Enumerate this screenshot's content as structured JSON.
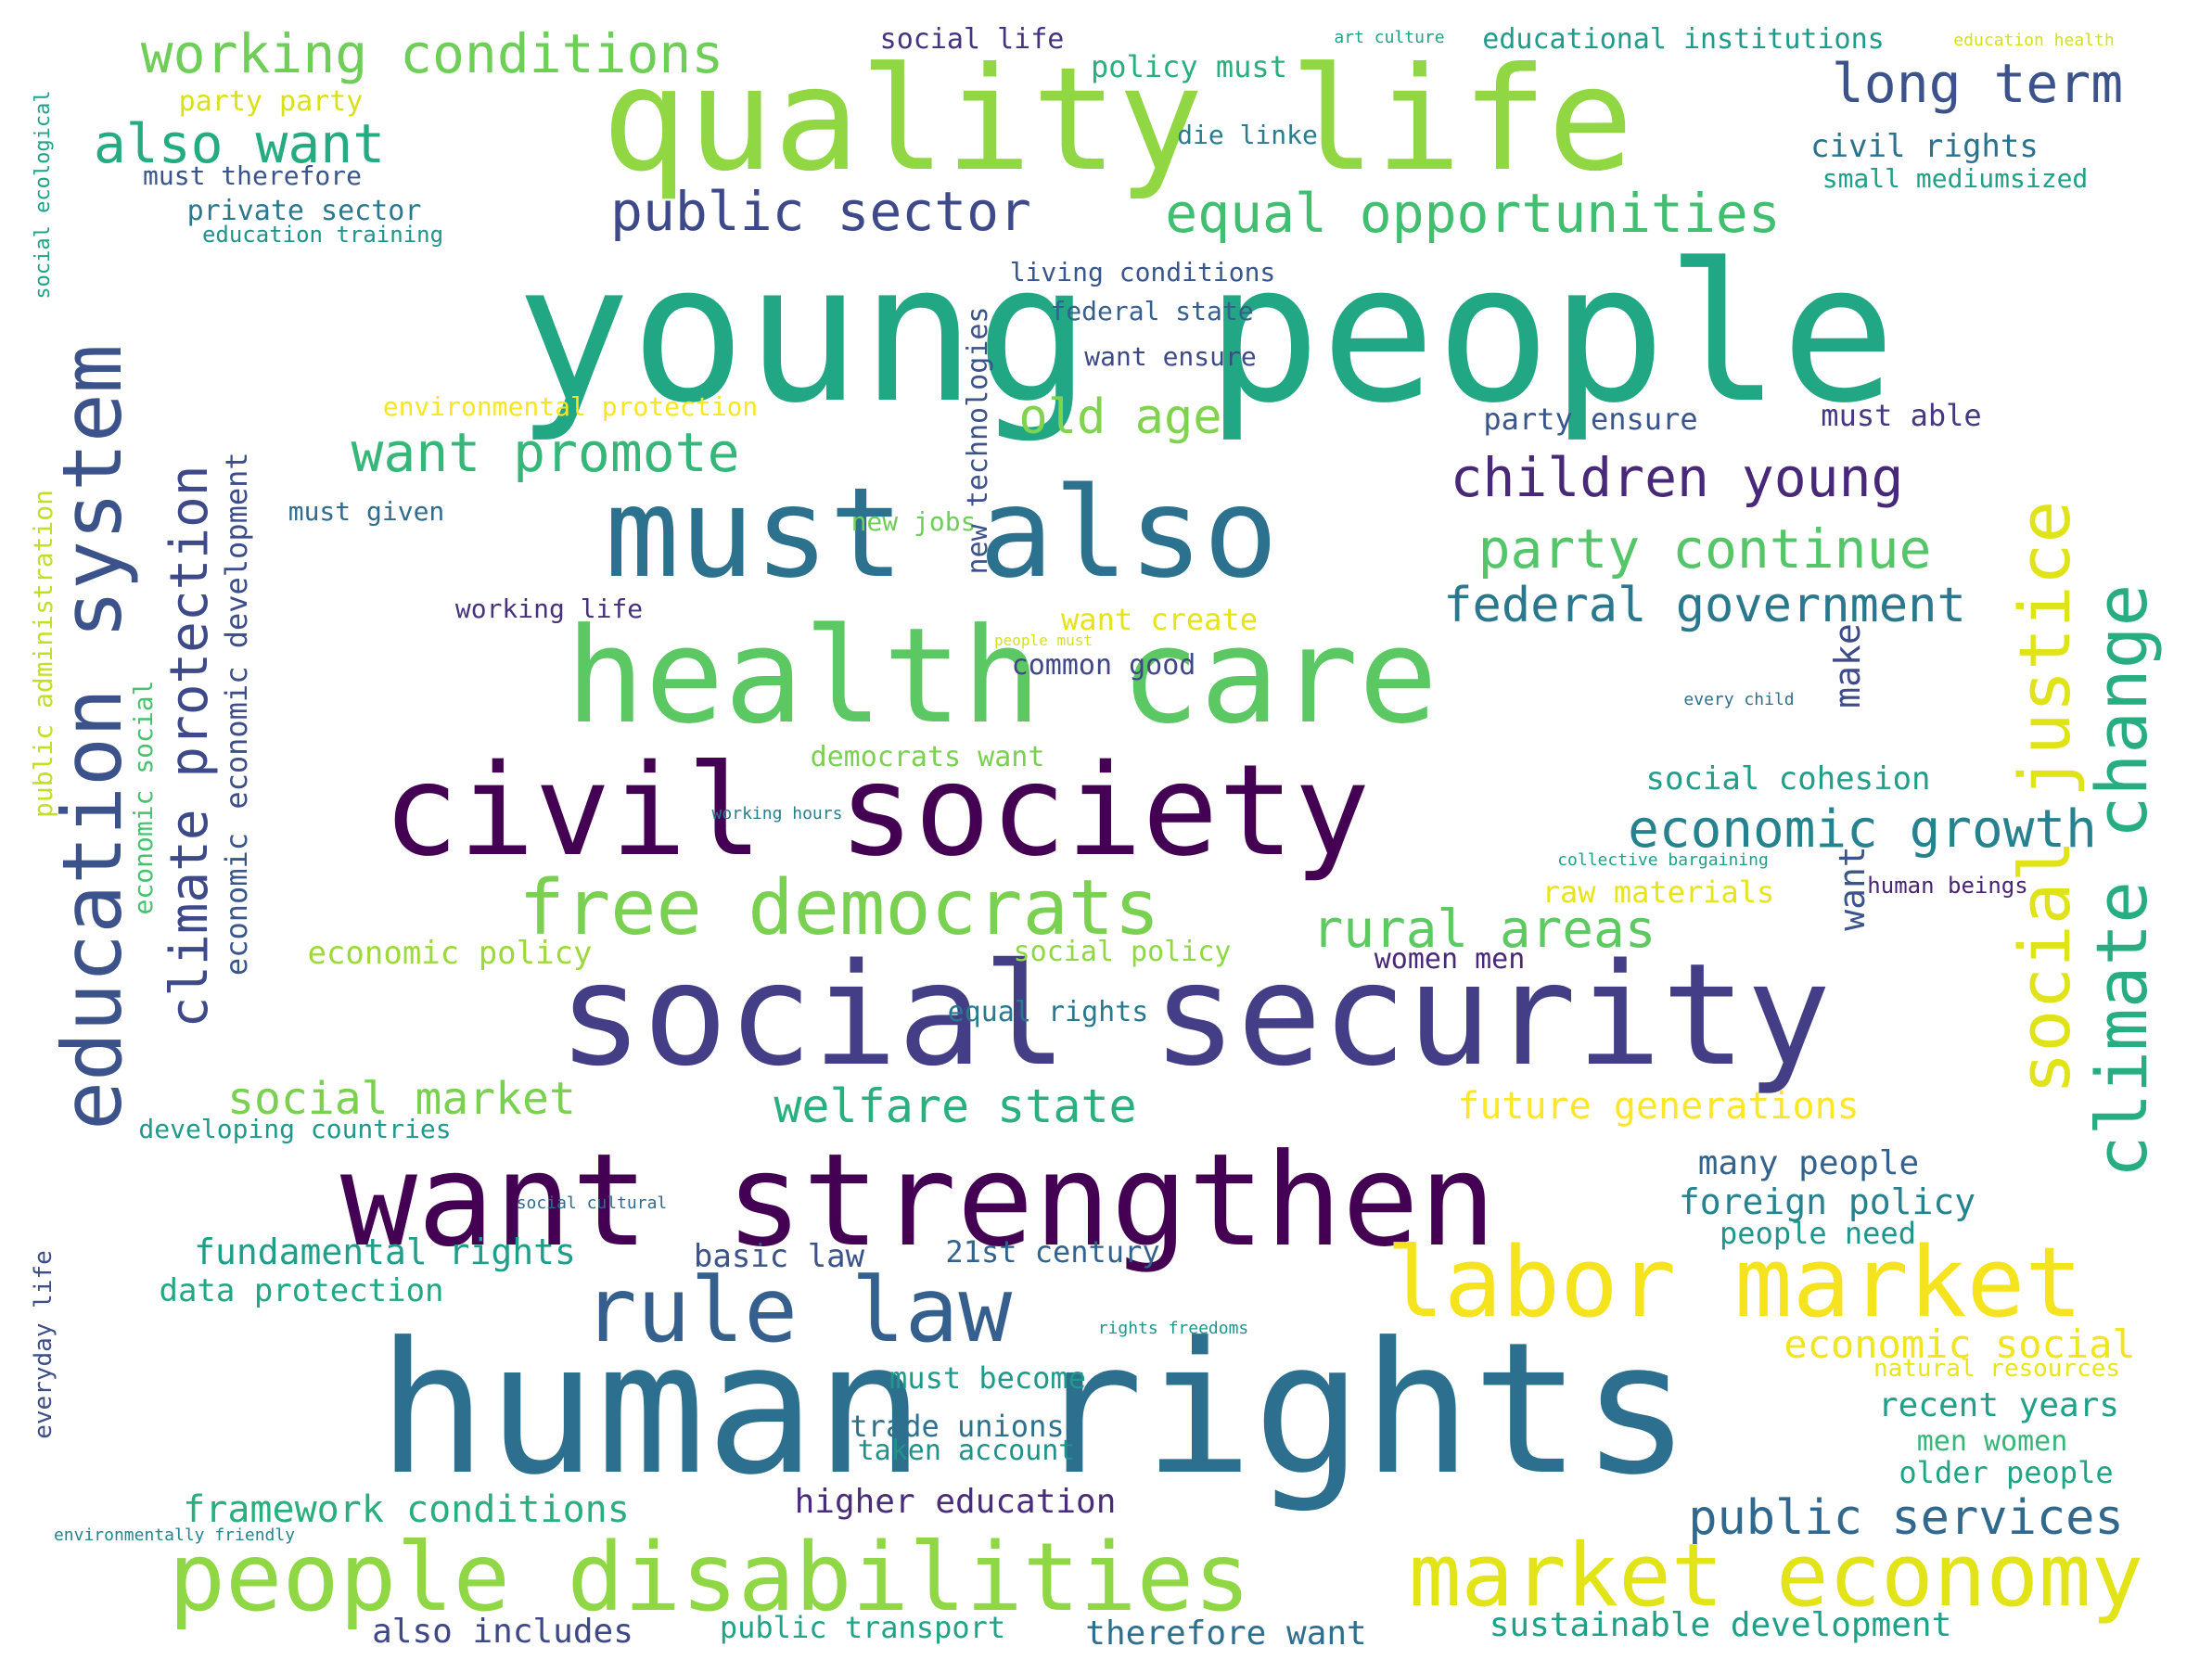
{
  "words": [
    {
      "text": "young people",
      "color": "#22a784",
      "vertical": false
    },
    {
      "text": "human rights",
      "color": "#2d6f8e",
      "vertical": false
    },
    {
      "text": "quality life",
      "color": "#90d743",
      "vertical": false
    },
    {
      "text": "social security",
      "color": "#433e85",
      "vertical": false
    },
    {
      "text": "want strengthen",
      "color": "#440154",
      "vertical": false
    },
    {
      "text": "health care",
      "color": "#5cc863",
      "vertical": false
    },
    {
      "text": "civil society",
      "color": "#440154",
      "vertical": false
    },
    {
      "text": "must also",
      "color": "#2c728e",
      "vertical": false
    },
    {
      "text": "people disabilities",
      "color": "#8fd744",
      "vertical": false
    },
    {
      "text": "labor market",
      "color": "#f5e31e",
      "vertical": false
    },
    {
      "text": "market economy",
      "color": "#e2e418",
      "vertical": false
    },
    {
      "text": "rule law",
      "color": "#355f8d",
      "vertical": false
    },
    {
      "text": "education system",
      "color": "#3b528b",
      "vertical": true
    },
    {
      "text": "free democrats",
      "color": "#7ad151",
      "vertical": false
    },
    {
      "text": "social justice",
      "color": "#dfe318",
      "vertical": true
    },
    {
      "text": "climate change",
      "color": "#27ad81",
      "vertical": true
    },
    {
      "text": "climate protection",
      "color": "#3e4989",
      "vertical": true
    },
    {
      "text": "working conditions",
      "color": "#6ece58",
      "vertical": false
    },
    {
      "text": "equal opportunities",
      "color": "#42be71",
      "vertical": false
    },
    {
      "text": "public sector",
      "color": "#3e4989",
      "vertical": false
    },
    {
      "text": "also want",
      "color": "#25ab82",
      "vertical": false
    },
    {
      "text": "long term",
      "color": "#3b528b",
      "vertical": false
    },
    {
      "text": "want promote",
      "color": "#35b779",
      "vertical": false
    },
    {
      "text": "children young",
      "color": "#482878",
      "vertical": false
    },
    {
      "text": "party continue",
      "color": "#54c568",
      "vertical": false
    },
    {
      "text": "old age",
      "color": "#7fd34e",
      "vertical": false
    },
    {
      "text": "federal government",
      "color": "#2a788e",
      "vertical": false
    },
    {
      "text": "economic growth",
      "color": "#26828e",
      "vertical": false
    },
    {
      "text": "rural areas",
      "color": "#5ec962",
      "vertical": false
    },
    {
      "text": "social market",
      "color": "#7ad151",
      "vertical": false
    },
    {
      "text": "welfare state",
      "color": "#2ab07f",
      "vertical": false
    },
    {
      "text": "public services",
      "color": "#31688e",
      "vertical": false
    },
    {
      "text": "economic social",
      "color": "#f1e51d",
      "vertical": false
    },
    {
      "text": "future generations",
      "color": "#fde725",
      "vertical": false
    },
    {
      "text": "framework conditions",
      "color": "#29af7f",
      "vertical": false
    },
    {
      "text": "higher education",
      "color": "#472d7b",
      "vertical": false
    },
    {
      "text": "fundamental rights",
      "color": "#1f9e89",
      "vertical": false
    },
    {
      "text": "data protection",
      "color": "#22a785",
      "vertical": false
    },
    {
      "text": "basic law",
      "color": "#3b528b",
      "vertical": false
    },
    {
      "text": "21st century",
      "color": "#33638d",
      "vertical": false
    },
    {
      "text": "foreign policy",
      "color": "#26828e",
      "vertical": false
    },
    {
      "text": "many people",
      "color": "#33638d",
      "vertical": false
    },
    {
      "text": "people need",
      "color": "#1f968b",
      "vertical": false
    },
    {
      "text": "recent years",
      "color": "#1fa088",
      "vertical": false
    },
    {
      "text": "men women",
      "color": "#35b779",
      "vertical": false
    },
    {
      "text": "older people",
      "color": "#20a486",
      "vertical": false
    },
    {
      "text": "sustainable development",
      "color": "#1fa187",
      "vertical": false
    },
    {
      "text": "therefore want",
      "color": "#2e6e8e",
      "vertical": false
    },
    {
      "text": "also includes",
      "color": "#3f4788",
      "vertical": false
    },
    {
      "text": "public transport",
      "color": "#20a386",
      "vertical": false
    },
    {
      "text": "trade unions",
      "color": "#2c728e",
      "vertical": false
    },
    {
      "text": "taken account",
      "color": "#21918c",
      "vertical": false
    },
    {
      "text": "must become",
      "color": "#1f9a8a",
      "vertical": false
    },
    {
      "text": "social cohesion",
      "color": "#1f9f88",
      "vertical": false
    },
    {
      "text": "raw materials",
      "color": "#e7e419",
      "vertical": false
    },
    {
      "text": "human beings",
      "color": "#482475",
      "vertical": false
    },
    {
      "text": "women men",
      "color": "#482878",
      "vertical": false
    },
    {
      "text": "equal rights",
      "color": "#2a788e",
      "vertical": false
    },
    {
      "text": "social policy",
      "color": "#8fd744",
      "vertical": false
    },
    {
      "text": "economic policy",
      "color": "#9dd93b",
      "vertical": false
    },
    {
      "text": "democrats want",
      "color": "#7ad151",
      "vertical": false
    },
    {
      "text": "want create",
      "color": "#e5e419",
      "vertical": false
    },
    {
      "text": "common good",
      "color": "#3f4788",
      "vertical": false
    },
    {
      "text": "working life",
      "color": "#46327e",
      "vertical": false
    },
    {
      "text": "new jobs",
      "color": "#6ece58",
      "vertical": false
    },
    {
      "text": "must given",
      "color": "#2f6c8e",
      "vertical": false
    },
    {
      "text": "environmental protection",
      "color": "#f8e621",
      "vertical": false
    },
    {
      "text": "living conditions",
      "color": "#39568c",
      "vertical": false
    },
    {
      "text": "federal state",
      "color": "#355f8d",
      "vertical": false
    },
    {
      "text": "want ensure",
      "color": "#3e4989",
      "vertical": false
    },
    {
      "text": "party ensure",
      "color": "#39568c",
      "vertical": false
    },
    {
      "text": "must able",
      "color": "#453781",
      "vertical": false
    },
    {
      "text": "die linke",
      "color": "#287c8e",
      "vertical": false
    },
    {
      "text": "civil rights",
      "color": "#2c728e",
      "vertical": false
    },
    {
      "text": "small mediumsized",
      "color": "#1fa187",
      "vertical": false
    },
    {
      "text": "policy must",
      "color": "#29af7f",
      "vertical": false
    },
    {
      "text": "social life",
      "color": "#46337f",
      "vertical": false
    },
    {
      "text": "educational institutions",
      "color": "#1e9b8a",
      "vertical": false
    },
    {
      "text": "art culture",
      "color": "#20a386",
      "vertical": false
    },
    {
      "text": "education health",
      "color": "#d2e21b",
      "vertical": false
    },
    {
      "text": "party party",
      "color": "#d8e219",
      "vertical": false
    },
    {
      "text": "must therefore",
      "color": "#39558c",
      "vertical": false
    },
    {
      "text": "private sector",
      "color": "#2a788e",
      "vertical": false
    },
    {
      "text": "education training",
      "color": "#20928c",
      "vertical": false
    },
    {
      "text": "new technologies",
      "color": "#3b528b",
      "vertical": true
    },
    {
      "text": "make",
      "color": "#3e4a89",
      "vertical": true
    },
    {
      "text": "want",
      "color": "#3a548c",
      "vertical": true
    },
    {
      "text": "every child",
      "color": "#2d708e",
      "vertical": false
    },
    {
      "text": "collective bargaining",
      "color": "#1fa088",
      "vertical": false
    },
    {
      "text": "working hours",
      "color": "#287d8e",
      "vertical": false
    },
    {
      "text": "social cultural",
      "color": "#31688e",
      "vertical": false
    },
    {
      "text": "rights freedoms",
      "color": "#1f968b",
      "vertical": false
    },
    {
      "text": "natural resources",
      "color": "#eae51a",
      "vertical": false
    },
    {
      "text": "people must",
      "color": "#d5e21a",
      "vertical": false
    },
    {
      "text": "environmentally friendly",
      "color": "#25848e",
      "vertical": false
    },
    {
      "text": "developing countries",
      "color": "#1f9a8a",
      "vertical": false
    },
    {
      "text": "economic development",
      "color": "#3d4d8a",
      "vertical": true
    },
    {
      "text": "economic",
      "color": "#39568c",
      "vertical": true
    },
    {
      "text": "social ecological",
      "color": "#1fa287",
      "vertical": true
    },
    {
      "text": "public administration",
      "color": "#c2df23",
      "vertical": true
    },
    {
      "text": "economic social",
      "color": "#4ac16d",
      "vertical": true
    },
    {
      "text": "everyday life",
      "color": "#3d4d8a",
      "vertical": true
    }
  ]
}
